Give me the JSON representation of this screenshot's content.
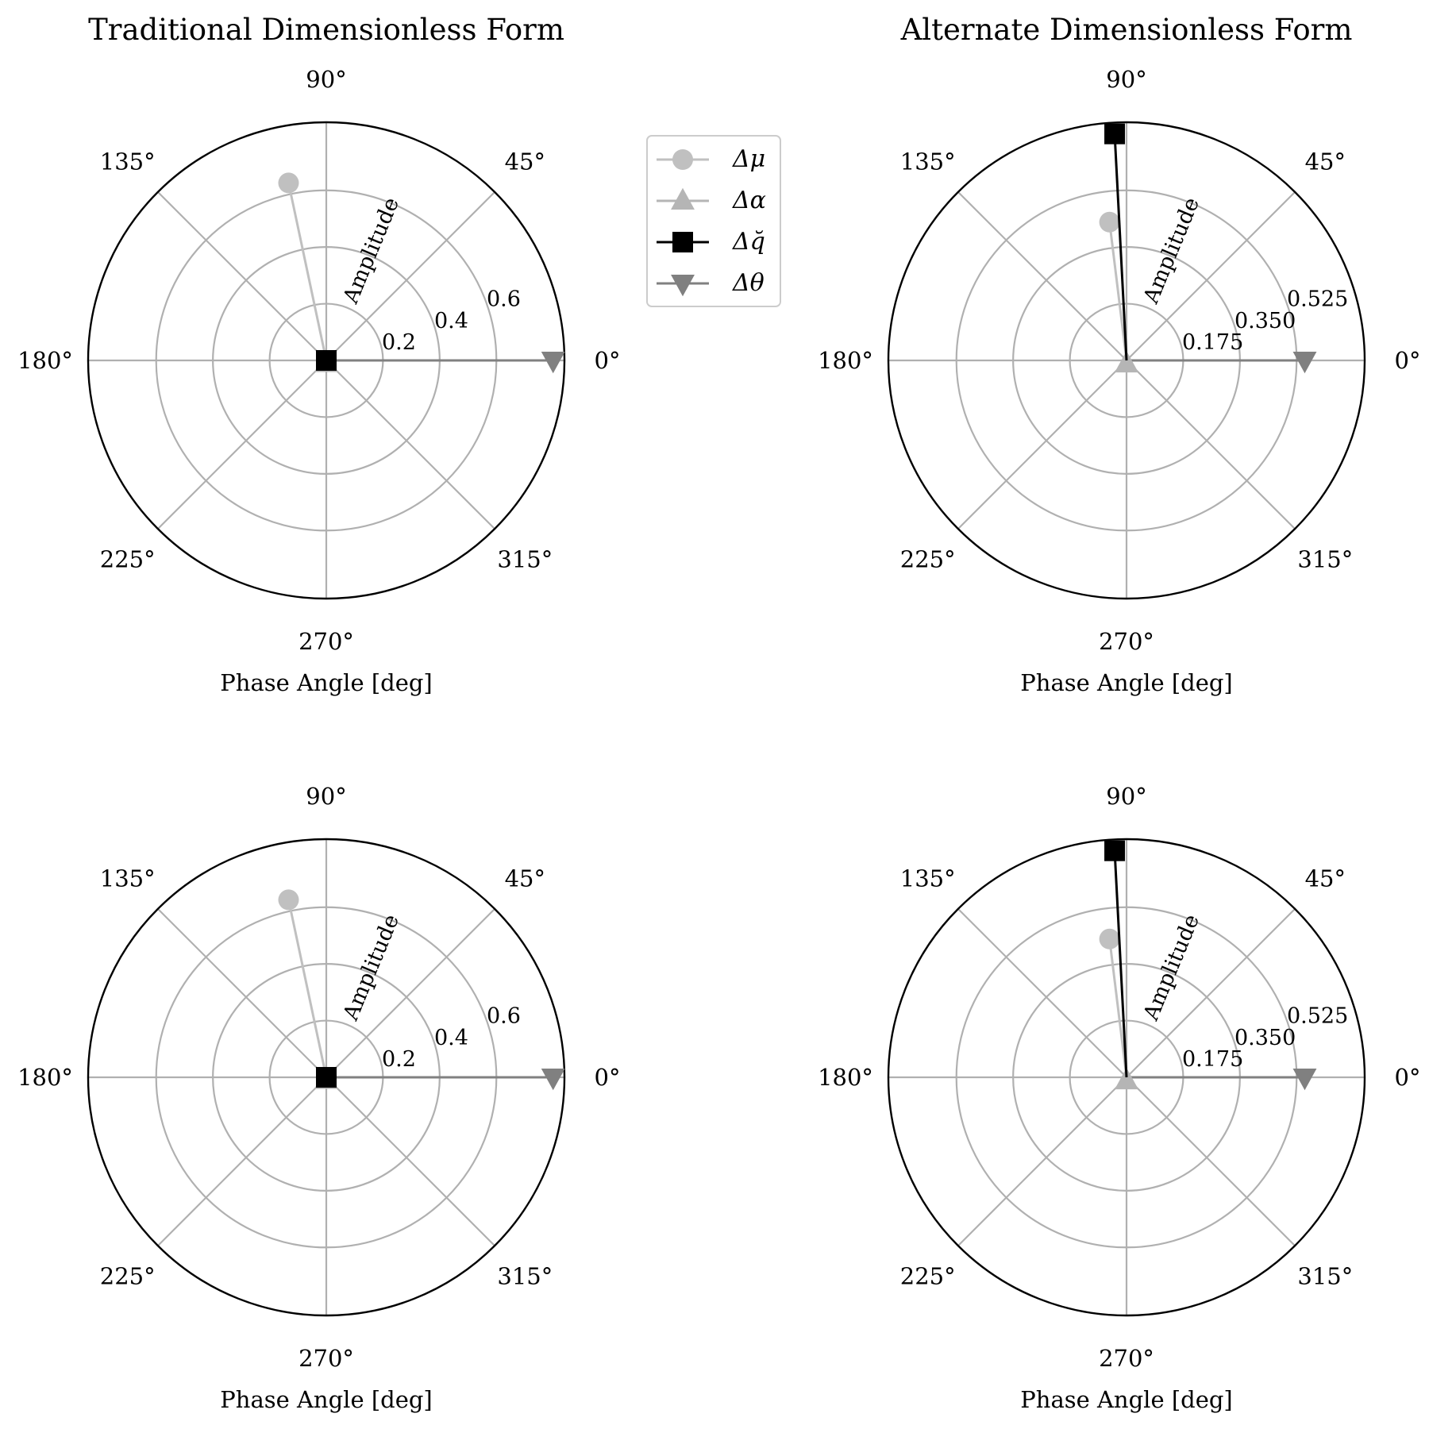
{
  "chart_data": [
    {
      "type": "polar",
      "title": "Traditional Dimensionless Form",
      "xlabel": "Phase Angle [deg]",
      "rlabel": "Amplitude",
      "theta_ticks": [
        "0°",
        "45°",
        "90°",
        "135°",
        "180°",
        "225°",
        "270°",
        "315°"
      ],
      "r_ticks": [
        0.2,
        0.4,
        0.6
      ],
      "r_tick_labels": [
        "0.2",
        "0.4",
        "0.6"
      ],
      "rmax": 0.84,
      "grid": true,
      "series": [
        {
          "name": "Δμ",
          "theta_deg": 102,
          "r": 0.64
        },
        {
          "name": "Δα",
          "theta_deg": 270,
          "r": 0.01
        },
        {
          "name": "Δq̆",
          "theta_deg": 0,
          "r": 0.0
        },
        {
          "name": "Δθ",
          "theta_deg": 0,
          "r": 0.8
        }
      ]
    },
    {
      "type": "polar",
      "title": "Alternate Dimensionless Form",
      "xlabel": "Phase Angle [deg]",
      "rlabel": "Amplitude",
      "theta_ticks": [
        "0°",
        "45°",
        "90°",
        "135°",
        "180°",
        "225°",
        "270°",
        "315°"
      ],
      "r_ticks": [
        0.175,
        0.35,
        0.525
      ],
      "r_tick_labels": [
        "0.175",
        "0.350",
        "0.525"
      ],
      "rmax": 0.735,
      "grid": true,
      "series": [
        {
          "name": "Δμ",
          "theta_deg": 97,
          "r": 0.43
        },
        {
          "name": "Δα",
          "theta_deg": 270,
          "r": 0.01
        },
        {
          "name": "Δq̆",
          "theta_deg": 93,
          "r": 0.7
        },
        {
          "name": "Δθ",
          "theta_deg": 0,
          "r": 0.55
        }
      ]
    },
    {
      "type": "polar",
      "title": "",
      "xlabel": "Phase Angle [deg]",
      "rlabel": "Amplitude",
      "theta_ticks": [
        "0°",
        "45°",
        "90°",
        "135°",
        "180°",
        "225°",
        "270°",
        "315°"
      ],
      "r_ticks": [
        0.2,
        0.4,
        0.6
      ],
      "r_tick_labels": [
        "0.2",
        "0.4",
        "0.6"
      ],
      "rmax": 0.84,
      "grid": true,
      "series": [
        {
          "name": "Δμ",
          "theta_deg": 102,
          "r": 0.64
        },
        {
          "name": "Δα",
          "theta_deg": 270,
          "r": 0.01
        },
        {
          "name": "Δq̆",
          "theta_deg": 0,
          "r": 0.0
        },
        {
          "name": "Δθ",
          "theta_deg": 0,
          "r": 0.8
        }
      ]
    },
    {
      "type": "polar",
      "title": "",
      "xlabel": "Phase Angle [deg]",
      "rlabel": "Amplitude",
      "theta_ticks": [
        "0°",
        "45°",
        "90°",
        "135°",
        "180°",
        "225°",
        "270°",
        "315°"
      ],
      "r_ticks": [
        0.175,
        0.35,
        0.525
      ],
      "r_tick_labels": [
        "0.175",
        "0.350",
        "0.525"
      ],
      "rmax": 0.735,
      "grid": true,
      "series": [
        {
          "name": "Δμ",
          "theta_deg": 97,
          "r": 0.43
        },
        {
          "name": "Δα",
          "theta_deg": 270,
          "r": 0.01
        },
        {
          "name": "Δq̆",
          "theta_deg": 93,
          "r": 0.7
        },
        {
          "name": "Δθ",
          "theta_deg": 0,
          "r": 0.55
        }
      ]
    }
  ],
  "legend": {
    "placement": "right of top-left panel",
    "entries": [
      {
        "label": "Δμ",
        "marker": "circle",
        "color": "#c0c0c0"
      },
      {
        "label": "Δα",
        "marker": "triangle-up",
        "color": "#b5b5b5"
      },
      {
        "label": "Δq̆",
        "marker": "square",
        "color": "#000000"
      },
      {
        "label": "Δθ",
        "marker": "triangle-down",
        "color": "#808080"
      }
    ]
  },
  "colors": {
    "grid": "#b0b0b0",
    "spine": "#000000",
    "mu": "#c0c0c0",
    "alpha": "#b5b5b5",
    "q": "#000000",
    "theta": "#808080"
  }
}
